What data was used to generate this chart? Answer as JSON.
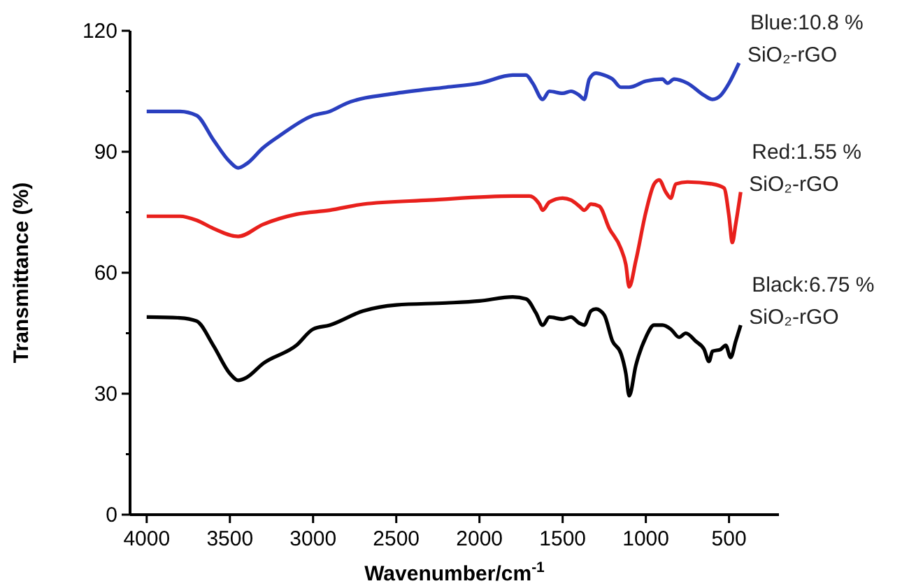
{
  "chart_data": {
    "type": "line",
    "xlabel": "Wavenumber/cm$^{-1}$",
    "ylabel": "Transmittance (%)",
    "xlim": [
      4100,
      200
    ],
    "xticks": [
      4000,
      3500,
      3000,
      2500,
      2000,
      1500,
      1000,
      500
    ],
    "ylim": [
      0,
      120
    ],
    "yticks": [
      0,
      {
        "value": 15,
        "label": null
      },
      30,
      {
        "value": 45,
        "label": null
      },
      60,
      {
        "value": 75,
        "label": null
      },
      90,
      {
        "value": 105,
        "label": null
      },
      120
    ],
    "grid": false,
    "marker": "none",
    "line_style": "solid",
    "series": [
      {
        "name": "Blue:10.8 % SiO₂-rGO",
        "color": "#2a3fbf",
        "x": [
          4000,
          3800,
          3700,
          3600,
          3500,
          3450,
          3400,
          3300,
          3200,
          3000,
          2900,
          2800,
          2500,
          2200,
          2000,
          1800,
          1720,
          1680,
          1620,
          1580,
          1500,
          1450,
          1400,
          1370,
          1340,
          1300,
          1250,
          1200,
          1150,
          1100,
          1000,
          900,
          870,
          830,
          750,
          650,
          600,
          550,
          500,
          440
        ],
        "values": [
          100,
          100,
          99,
          93,
          87.5,
          86,
          87,
          91,
          94,
          99,
          100,
          102,
          104.5,
          106,
          107,
          109,
          109,
          107,
          103,
          105,
          104.5,
          105,
          104,
          103,
          108,
          109.5,
          109,
          108,
          106,
          106,
          107.5,
          108,
          107,
          108,
          107,
          104,
          103,
          104,
          107,
          112
        ]
      },
      {
        "name": "Red:1.55 % SiO₂-rGO",
        "color": "#e8201c",
        "x": [
          4000,
          3800,
          3700,
          3600,
          3450,
          3300,
          3100,
          2900,
          2700,
          2300,
          1800,
          1700,
          1640,
          1620,
          1580,
          1500,
          1450,
          1400,
          1370,
          1330,
          1280,
          1220,
          1150,
          1120,
          1100,
          1060,
          1000,
          950,
          920,
          880,
          850,
          820,
          750,
          600,
          530,
          500,
          480,
          460,
          430
        ],
        "values": [
          74,
          74,
          73,
          71,
          69,
          72,
          74.5,
          75.5,
          77,
          78,
          79,
          79,
          77,
          75.5,
          77.5,
          78.5,
          78,
          76.5,
          75.5,
          77,
          76.5,
          71,
          66,
          62,
          56.5,
          63,
          75,
          82,
          83,
          80,
          78.5,
          82,
          82.5,
          82,
          81,
          74,
          67.5,
          72,
          80
        ]
      },
      {
        "name": "Black:6.75 % SiO₂-rGO",
        "color": "#000000",
        "x": [
          4000,
          3800,
          3700,
          3600,
          3500,
          3450,
          3400,
          3300,
          3100,
          3000,
          2900,
          2700,
          2500,
          2200,
          2000,
          1800,
          1720,
          1660,
          1620,
          1580,
          1500,
          1450,
          1400,
          1370,
          1330,
          1300,
          1250,
          1200,
          1150,
          1120,
          1100,
          1060,
          1000,
          950,
          900,
          850,
          800,
          760,
          700,
          650,
          620,
          600,
          550,
          520,
          490,
          460,
          430
        ],
        "values": [
          49,
          48.8,
          48,
          42,
          35,
          33.3,
          34,
          37.5,
          42,
          46,
          47,
          50.5,
          52,
          52.5,
          53,
          54,
          53.5,
          50,
          47,
          49,
          48.5,
          49,
          47.5,
          47,
          50.5,
          51,
          49.5,
          43,
          40,
          35,
          29.5,
          37,
          44,
          47,
          47,
          46,
          44,
          45,
          43,
          41,
          38,
          40.5,
          41,
          42,
          39,
          43,
          47
        ]
      }
    ]
  }
}
